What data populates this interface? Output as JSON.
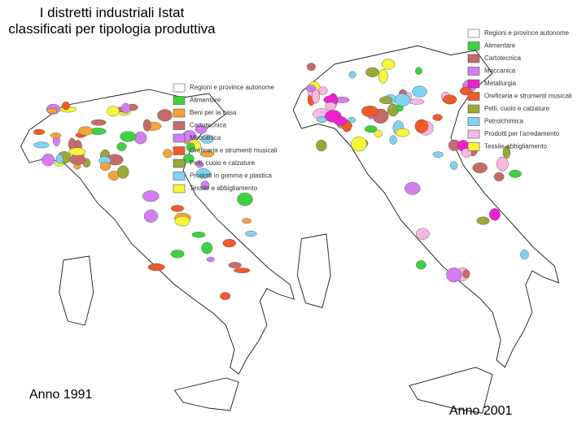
{
  "title": "I distretti industriali Istat classificati per tipologia produttiva",
  "maps": [
    {
      "caption": "Anno 1991",
      "legend": [
        {
          "label": "Regioni e province autonome",
          "color": "#ffffff"
        },
        {
          "label": "Alimentare",
          "color": "#3fd13f"
        },
        {
          "label": "Beni per la casa",
          "color": "#f5a33a"
        },
        {
          "label": "Cartotecnica",
          "color": "#c76a6a"
        },
        {
          "label": "Meccanica",
          "color": "#d27ef0"
        },
        {
          "label": "Oreficeria e strumenti musicali",
          "color": "#f05a28"
        },
        {
          "label": "Pelli, cuoio e calzature",
          "color": "#9aa83a"
        },
        {
          "label": "Prodotti in gomma e plastica",
          "color": "#7fd3f0"
        },
        {
          "label": "Tessile e abbigliamento",
          "color": "#f5f53a"
        }
      ]
    },
    {
      "caption": "Anno 2001",
      "legend": [
        {
          "label": "Regioni e province autonome",
          "color": "#ffffff"
        },
        {
          "label": "Alimentare",
          "color": "#3fd13f"
        },
        {
          "label": "Cartotecnica",
          "color": "#c76a6a"
        },
        {
          "label": "Meccanica",
          "color": "#d27ef0"
        },
        {
          "label": "Metallurgia",
          "color": "#f020d0"
        },
        {
          "label": "Oreficeria e strumenti musicali",
          "color": "#f05a28"
        },
        {
          "label": "Pelli, cuoio e calzature",
          "color": "#9aa83a"
        },
        {
          "label": "Petrolchimica",
          "color": "#7fd3f0"
        },
        {
          "label": "Prodotti per l'arredamento",
          "color": "#f7b8e0"
        },
        {
          "label": "Tessile-abbigliamento",
          "color": "#f5f53a"
        }
      ]
    }
  ]
}
